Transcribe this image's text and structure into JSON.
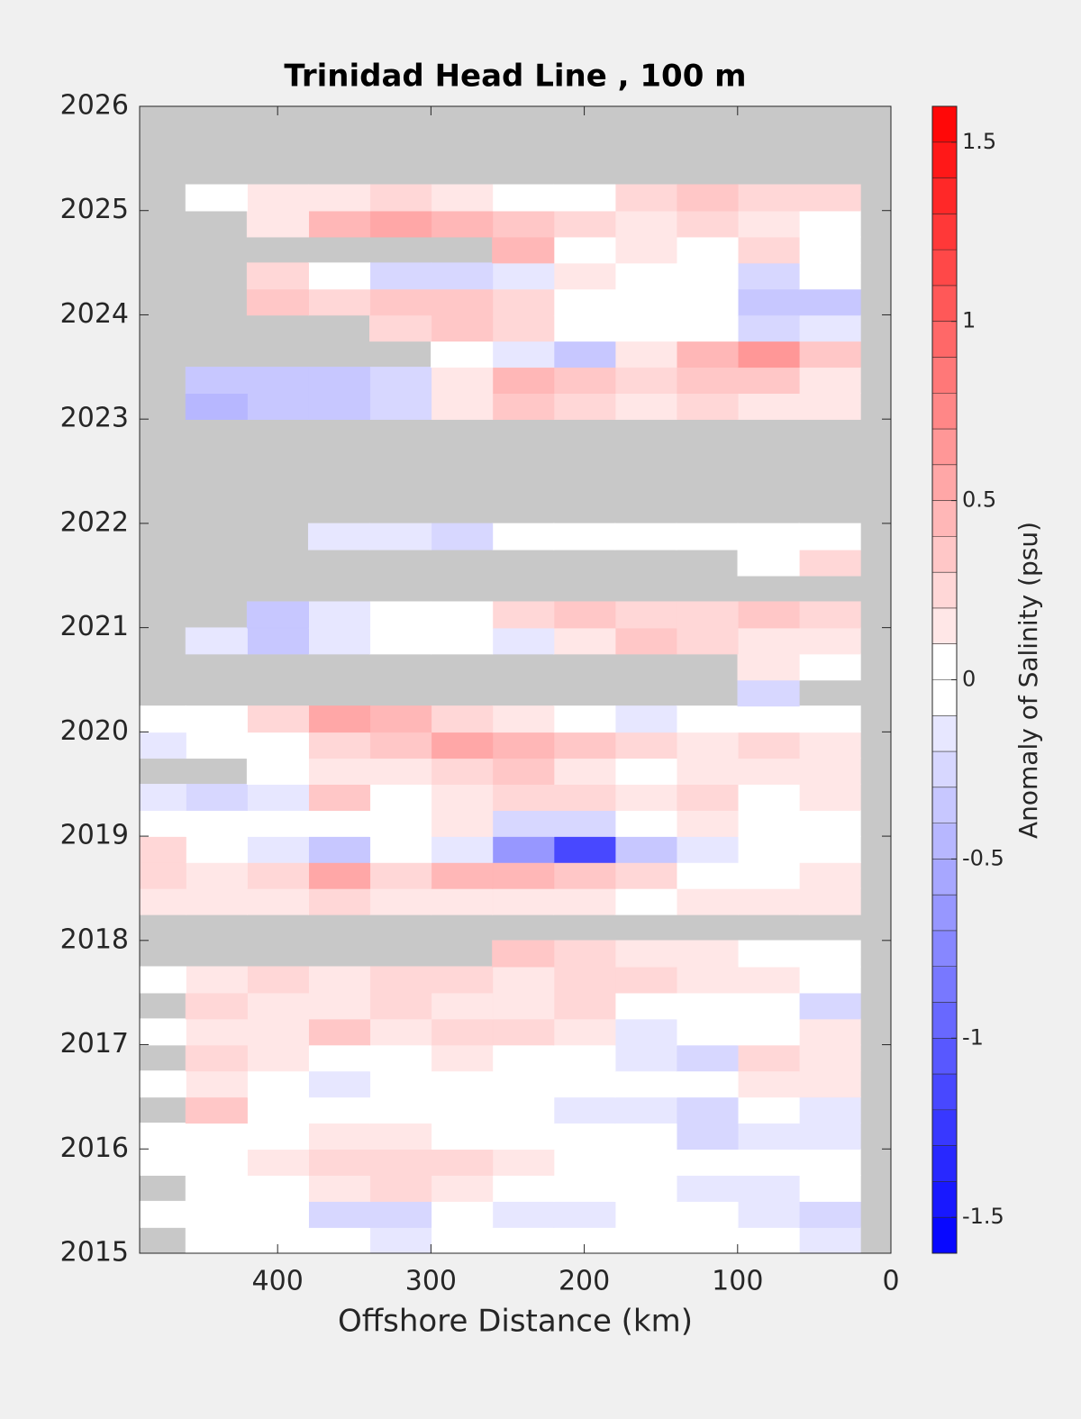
{
  "chart_data": {
    "type": "heatmap",
    "title": "Trinidad Head Line , 100 m",
    "xlabel": "Offshore Distance (km)",
    "colorbar_label": "Anomaly of Salinity (psu)",
    "xlim": [
      490,
      0
    ],
    "xticks": [
      400,
      300,
      200,
      100,
      0
    ],
    "ylim": [
      2015,
      2026
    ],
    "yticks": [
      2015,
      2016,
      2017,
      2018,
      2019,
      2020,
      2021,
      2022,
      2023,
      2024,
      2025,
      2026
    ],
    "clim": [
      -1.6,
      1.6
    ],
    "cticks": [
      -1.5,
      -1,
      -0.5,
      0,
      0.5,
      1,
      1.5
    ],
    "contour_step": 0.1,
    "cmap": [
      "#0000ff",
      "#ffffff",
      "#ff0000"
    ],
    "missing_color": "#c8c8c8",
    "xbins": [
      20,
      60,
      100,
      140,
      180,
      220,
      260,
      300,
      340,
      380,
      420,
      460,
      500
    ],
    "ybins": [
      2015,
      2015.25,
      2015.5,
      2015.75,
      2016,
      2016.25,
      2016.5,
      2016.75,
      2017,
      2017.25,
      2017.5,
      2017.75,
      2018,
      2018.25,
      2018.5,
      2018.75,
      2019,
      2019.25,
      2019.5,
      2019.75,
      2020,
      2020.25,
      2020.5,
      2020.75,
      2021,
      2021.25,
      2021.5,
      2021.75,
      2022,
      2022.25,
      2022.5,
      2022.75,
      2023,
      2023.25,
      2023.5,
      2023.75,
      2024,
      2024.25,
      2024.5,
      2024.75,
      2025,
      2025.25,
      2025.5,
      2025.75,
      2026
    ],
    "z": [
      [
        -0.2,
        -0.1,
        -0.1,
        0,
        -0.1,
        -0.1,
        -0.1,
        -0.2,
        -0.1,
        0,
        0,
        null
      ],
      [
        -0.3,
        -0.2,
        -0.1,
        0,
        -0.2,
        -0.2,
        -0.1,
        -0.3,
        -0.3,
        -0.1,
        -0.1,
        0
      ],
      [
        0,
        -0.2,
        -0.2,
        0,
        -0.1,
        0,
        0.1,
        0.2,
        0.1,
        0,
        -0.1,
        null
      ],
      [
        -0.1,
        0,
        -0.1,
        -0.1,
        0,
        0.1,
        0.2,
        0.2,
        0.2,
        0.1,
        0,
        0
      ],
      [
        -0.2,
        -0.2,
        -0.3,
        -0.1,
        -0.1,
        -0.1,
        0,
        0.1,
        0.1,
        0,
        0,
        0
      ],
      [
        -0.2,
        -0.1,
        -0.3,
        -0.2,
        -0.2,
        -0.1,
        -0.1,
        0,
        -0.1,
        0,
        0.3,
        null
      ],
      [
        0.1,
        0.1,
        0,
        -0.1,
        0,
        -0.1,
        0,
        -0.1,
        -0.2,
        0,
        0.1,
        0
      ],
      [
        0.1,
        0.2,
        -0.3,
        -0.2,
        0,
        0,
        0.1,
        -0.1,
        -0.1,
        0.1,
        0.2,
        null
      ],
      [
        0.1,
        -0.1,
        -0.1,
        -0.2,
        0.1,
        0.2,
        0.2,
        0.1,
        0.3,
        0.1,
        0.1,
        0
      ],
      [
        -0.3,
        -0.1,
        -0.1,
        0,
        0.2,
        0.1,
        0.1,
        0.2,
        0.1,
        0.1,
        0.2,
        null
      ],
      [
        0,
        0.1,
        0.1,
        0.2,
        0.2,
        0.1,
        0.2,
        0.2,
        0.1,
        0.2,
        0.1,
        0
      ],
      [
        0,
        0,
        0.1,
        0.1,
        0.2,
        0.3,
        null,
        null,
        null,
        null,
        null,
        null
      ],
      [
        null,
        null,
        null,
        null,
        null,
        null,
        null,
        null,
        null,
        null,
        null,
        null
      ],
      [
        0.1,
        0.1,
        0.1,
        0,
        0.1,
        0.1,
        0.1,
        0.1,
        0.2,
        0.1,
        0.1,
        0.1
      ],
      [
        0.1,
        0,
        0,
        0.2,
        0.3,
        0.4,
        0.4,
        0.2,
        0.5,
        0.2,
        0.1,
        0.2
      ],
      [
        0,
        -0.1,
        -0.2,
        -0.4,
        -1.2,
        -0.7,
        -0.2,
        -0.1,
        -0.4,
        -0.2,
        0,
        0.2
      ],
      [
        0,
        0,
        0.1,
        -0.1,
        -0.3,
        -0.3,
        0.1,
        0,
        0,
        0,
        -0.1,
        0
      ],
      [
        0.1,
        0,
        0.2,
        0.1,
        0.2,
        0.2,
        0.1,
        0,
        0.3,
        -0.2,
        -0.3,
        -0.2
      ],
      [
        0.1,
        0.1,
        0.1,
        0,
        0.1,
        0.3,
        0.2,
        0.1,
        0.1,
        0,
        null,
        null
      ],
      [
        0.1,
        0.2,
        0.1,
        0.2,
        0.3,
        0.4,
        0.5,
        0.3,
        0.2,
        0,
        -0.1,
        -0.2
      ],
      [
        0,
        0,
        -0.1,
        -0.2,
        0,
        0.1,
        0.2,
        0.4,
        0.5,
        0.2,
        0,
        -0.1
      ],
      [
        null,
        -0.3,
        null,
        null,
        null,
        null,
        null,
        null,
        null,
        null,
        null,
        null
      ],
      [
        0,
        0.1,
        null,
        null,
        null,
        null,
        null,
        null,
        null,
        null,
        null,
        null
      ],
      [
        0.1,
        0.1,
        0.2,
        0.3,
        0.1,
        -0.2,
        -0.1,
        0,
        -0.2,
        -0.4,
        -0.2,
        null
      ],
      [
        0.2,
        0.3,
        0.2,
        0.2,
        0.3,
        0.2,
        0,
        0,
        -0.2,
        -0.4,
        null,
        null
      ],
      [
        null,
        null,
        null,
        null,
        null,
        null,
        null,
        null,
        null,
        null,
        null,
        null
      ],
      [
        0.2,
        0,
        null,
        null,
        null,
        null,
        null,
        null,
        null,
        null,
        null,
        null
      ],
      [
        0,
        0,
        0,
        -0.1,
        0,
        -0.1,
        -0.3,
        -0.2,
        -0.2,
        null,
        null,
        null
      ],
      [
        null,
        null,
        null,
        null,
        null,
        null,
        null,
        null,
        null,
        null,
        null,
        null
      ],
      [
        null,
        null,
        null,
        null,
        null,
        null,
        null,
        null,
        null,
        null,
        null,
        null
      ],
      [
        null,
        null,
        null,
        null,
        null,
        null,
        null,
        null,
        null,
        null,
        null,
        null
      ],
      [
        null,
        null,
        null,
        null,
        null,
        null,
        null,
        null,
        null,
        null,
        null,
        null
      ],
      [
        0.1,
        0.1,
        0.2,
        0.1,
        0.2,
        0.3,
        0.1,
        -0.3,
        -0.4,
        -0.4,
        -0.5,
        null
      ],
      [
        0.1,
        0.3,
        0.3,
        0.2,
        0.3,
        0.4,
        0.1,
        -0.3,
        -0.4,
        -0.4,
        -0.4,
        null
      ],
      [
        0.3,
        0.6,
        0.4,
        0.1,
        -0.4,
        -0.2,
        -0.1,
        null,
        null,
        null,
        null,
        null
      ],
      [
        -0.2,
        -0.3,
        -0.1,
        0,
        0,
        0.2,
        0.3,
        0.2,
        null,
        null,
        null,
        null
      ],
      [
        -0.4,
        -0.4,
        -0.1,
        0,
        0,
        0.2,
        0.3,
        0.3,
        0.2,
        0.3,
        null,
        null
      ],
      [
        0,
        -0.3,
        0,
        0,
        0.1,
        -0.2,
        -0.3,
        -0.3,
        -0.1,
        0.2,
        null,
        null
      ],
      [
        0,
        0.2,
        0,
        0.1,
        0,
        0.4,
        null,
        null,
        null,
        null,
        null,
        null
      ],
      [
        0,
        0.1,
        0.2,
        0.1,
        0.2,
        0.3,
        0.4,
        0.5,
        0.4,
        0.1,
        null,
        null
      ],
      [
        0.2,
        0.2,
        0.3,
        0.2,
        -0.1,
        0,
        0.1,
        0.2,
        0.1,
        0.1,
        0,
        null
      ],
      [
        null,
        null,
        null,
        null,
        null,
        null,
        null,
        null,
        null,
        null,
        null,
        null
      ],
      [
        null,
        null,
        null,
        null,
        null,
        null,
        null,
        null,
        null,
        null,
        null,
        null
      ],
      [
        null,
        null,
        null,
        null,
        null,
        null,
        null,
        null,
        null,
        null,
        null,
        null
      ]
    ]
  }
}
